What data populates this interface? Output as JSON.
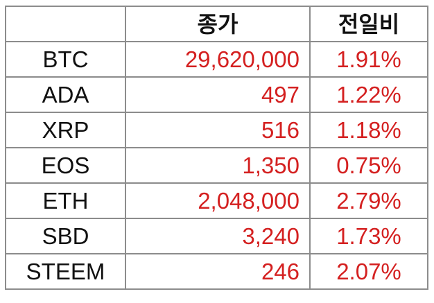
{
  "table": {
    "headers": [
      "",
      "종가",
      "전일비"
    ],
    "rows": [
      {
        "symbol": "BTC",
        "close": "29,620,000",
        "change": "1.91%"
      },
      {
        "symbol": "ADA",
        "close": "497",
        "change": "1.22%"
      },
      {
        "symbol": "XRP",
        "close": "516",
        "change": "1.18%"
      },
      {
        "symbol": "EOS",
        "close": "1,350",
        "change": "0.75%"
      },
      {
        "symbol": "ETH",
        "close": "2,048,000",
        "change": "2.79%"
      },
      {
        "symbol": "SBD",
        "close": "3,240",
        "change": "1.73%"
      },
      {
        "symbol": "STEEM",
        "close": "246",
        "change": "2.07%"
      }
    ]
  },
  "colors": {
    "value_text": "#d42020",
    "label_text": "#111111",
    "grid_line": "#8c8c8c"
  }
}
